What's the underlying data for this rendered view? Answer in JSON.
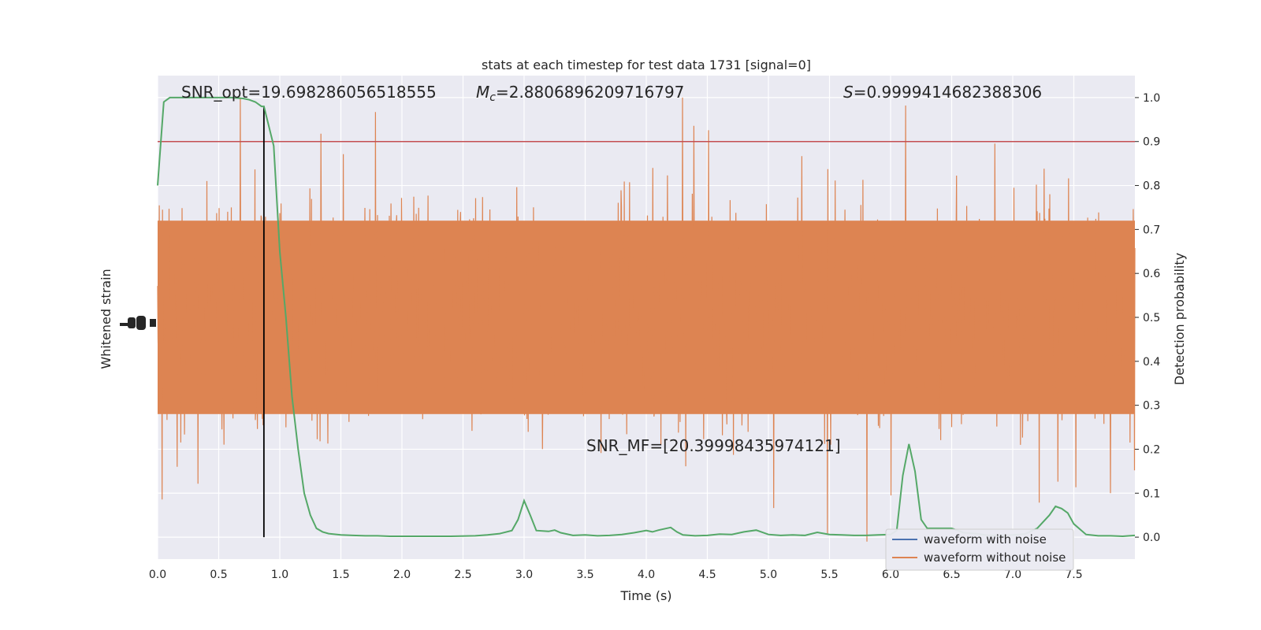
{
  "chart_data": {
    "type": "line",
    "title": "stats at each timestep for test data 1731 [signal=0]",
    "xlabel": "Time (s)",
    "ylabel_left": "Whitened strain",
    "ylabel_right": "Detection probability",
    "xlim": [
      0,
      8
    ],
    "ylim_right": [
      -0.05,
      1.05
    ],
    "x_ticks": [
      "0.0",
      "0.5",
      "1.0",
      "1.5",
      "2.0",
      "2.5",
      "3.0",
      "3.5",
      "4.0",
      "4.5",
      "5.0",
      "5.5",
      "6.0",
      "6.5",
      "7.0",
      "7.5"
    ],
    "y_right_ticks": [
      "0.0",
      "0.1",
      "0.2",
      "0.3",
      "0.4",
      "0.5",
      "0.6",
      "0.7",
      "0.8",
      "0.9",
      "1.0"
    ],
    "grid": true,
    "legend_position": "lower-right",
    "annotations": {
      "snr_opt": "SNR_opt=19.698286056518555",
      "mc_symbol": "M",
      "mc_sub": "c",
      "mc_value": "=2.8806896209716797",
      "s_symbol": "S",
      "s_value": "=0.9999414682388306",
      "snr_mf": "SNR_MF=[20.39998435974121]"
    },
    "threshold": 0.9,
    "marker_time": 0.87,
    "series": [
      {
        "name": "waveform with noise",
        "color": "#4c72b0"
      },
      {
        "name": "waveform without noise",
        "color": "#dd8452"
      }
    ],
    "detection_probability": {
      "color": "#55a868",
      "x": [
        0.0,
        0.05,
        0.1,
        0.15,
        0.2,
        0.3,
        0.4,
        0.5,
        0.6,
        0.7,
        0.75,
        0.8,
        0.85,
        0.87,
        0.95,
        1.0,
        1.05,
        1.1,
        1.15,
        1.2,
        1.25,
        1.3,
        1.35,
        1.4,
        1.5,
        1.6,
        1.7,
        1.8,
        1.9,
        2.0,
        2.2,
        2.4,
        2.6,
        2.7,
        2.8,
        2.9,
        2.95,
        3.0,
        3.05,
        3.1,
        3.2,
        3.25,
        3.3,
        3.4,
        3.5,
        3.6,
        3.7,
        3.8,
        3.9,
        4.0,
        4.05,
        4.1,
        4.2,
        4.25,
        4.3,
        4.4,
        4.5,
        4.6,
        4.7,
        4.8,
        4.9,
        5.0,
        5.1,
        5.2,
        5.3,
        5.4,
        5.5,
        5.6,
        5.7,
        5.8,
        5.9,
        6.0,
        6.05,
        6.1,
        6.15,
        6.2,
        6.25,
        6.3,
        6.4,
        6.5,
        6.6,
        6.7,
        6.8,
        6.9,
        7.0,
        7.1,
        7.2,
        7.3,
        7.35,
        7.4,
        7.45,
        7.5,
        7.6,
        7.7,
        7.8,
        7.9,
        8.0
      ],
      "y": [
        0.8,
        0.99,
        1.0,
        1.0,
        1.0,
        1.0,
        1.0,
        1.0,
        1.0,
        0.998,
        0.995,
        0.99,
        0.98,
        0.98,
        0.89,
        0.65,
        0.5,
        0.32,
        0.2,
        0.1,
        0.05,
        0.02,
        0.012,
        0.008,
        0.005,
        0.004,
        0.003,
        0.003,
        0.002,
        0.002,
        0.002,
        0.002,
        0.003,
        0.005,
        0.008,
        0.015,
        0.04,
        0.083,
        0.05,
        0.015,
        0.013,
        0.016,
        0.01,
        0.004,
        0.005,
        0.003,
        0.004,
        0.006,
        0.01,
        0.015,
        0.012,
        0.016,
        0.022,
        0.012,
        0.005,
        0.003,
        0.004,
        0.007,
        0.006,
        0.012,
        0.016,
        0.006,
        0.004,
        0.005,
        0.004,
        0.011,
        0.006,
        0.005,
        0.004,
        0.004,
        0.005,
        0.006,
        0.015,
        0.14,
        0.212,
        0.15,
        0.04,
        0.02,
        0.02,
        0.02,
        0.01,
        0.008,
        0.004,
        0.004,
        0.005,
        0.007,
        0.02,
        0.05,
        0.07,
        0.065,
        0.055,
        0.03,
        0.006,
        0.003,
        0.003,
        0.002,
        0.004
      ]
    }
  }
}
